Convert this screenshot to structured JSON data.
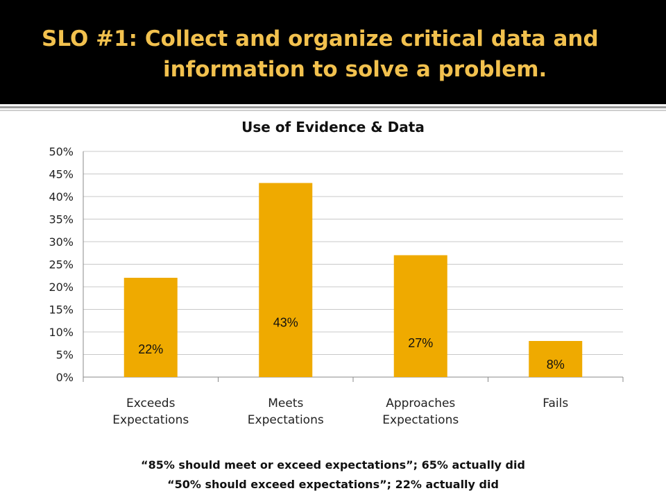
{
  "slide": {
    "title_line1": "SLO #1: Collect and organize critical data and",
    "title_line2": "information to solve a problem.",
    "footnote_line1": "“85% should meet or exceed expectations”; 65% actually did",
    "footnote_line2": "“50% should exceed expectations”; 22% actually did"
  },
  "colors": {
    "title_text": "#F2C14E",
    "title_band": "#000000",
    "bar": "#EFAA00"
  },
  "chart_data": {
    "type": "bar",
    "title": "Use of Evidence & Data",
    "categories": [
      [
        "Exceeds",
        "Expectations"
      ],
      [
        "Meets",
        "Expectations"
      ],
      [
        "Approaches",
        "Expectations"
      ],
      [
        "Fails"
      ]
    ],
    "values": [
      22,
      43,
      27,
      8
    ],
    "data_labels": [
      "22%",
      "43%",
      "27%",
      "8%"
    ],
    "ylim": [
      0,
      50
    ],
    "yticks": [
      "0%",
      "5%",
      "10%",
      "15%",
      "20%",
      "25%",
      "30%",
      "35%",
      "40%",
      "45%",
      "50%"
    ],
    "grid": true,
    "legend": "none"
  }
}
